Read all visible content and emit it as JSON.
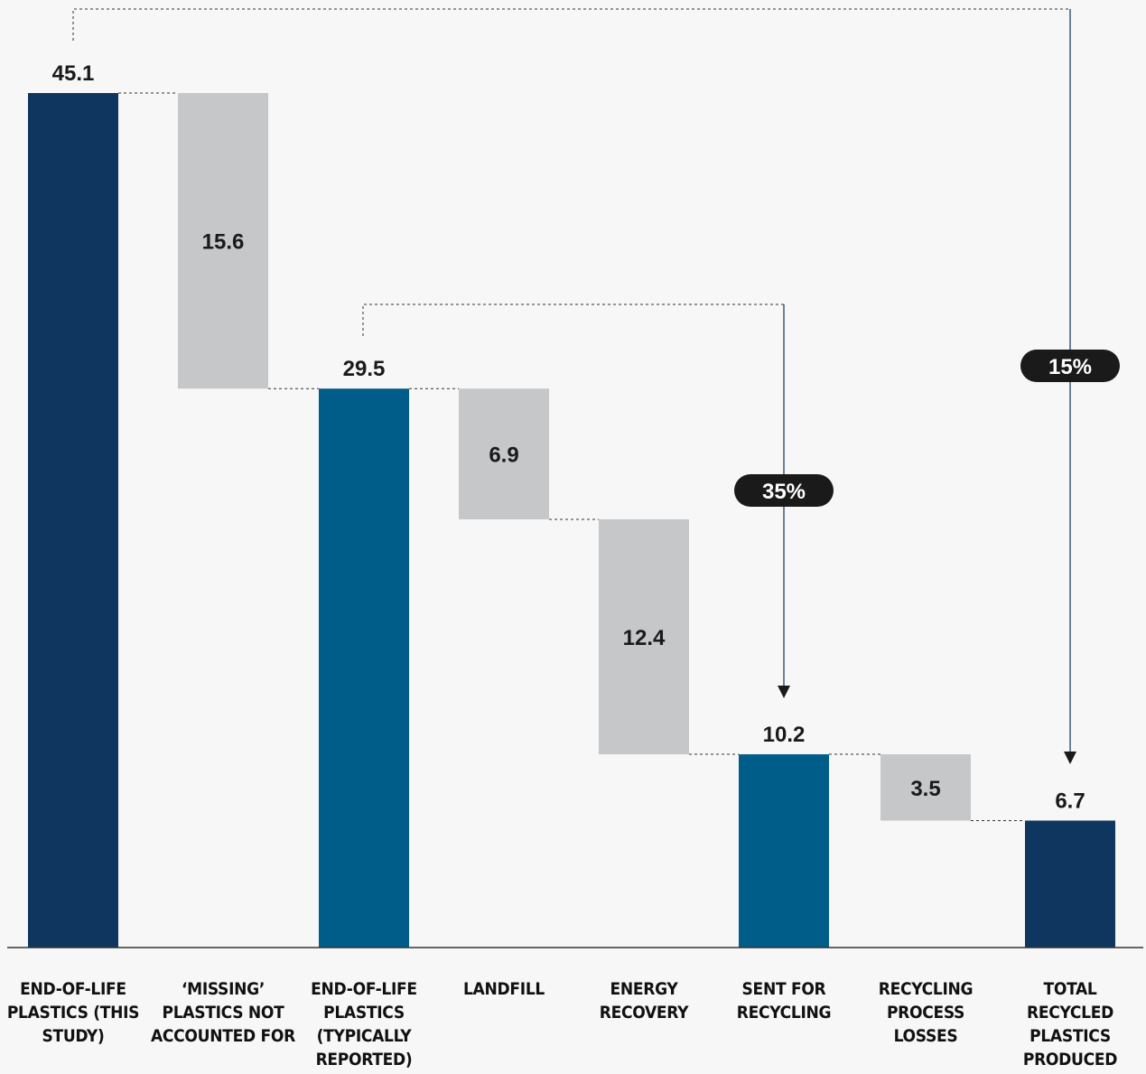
{
  "chart_data": {
    "type": "waterfall",
    "categories": [
      "END-OF-LIFE PLASTICS (THIS STUDY)",
      "‘MISSING’ PLASTICS NOT ACCOUNTED FOR",
      "END-OF-LIFE PLASTICS (TYPICALLY REPORTED)",
      "LANDFILL",
      "ENERGY RECOVERY",
      "SENT FOR RECYCLING",
      "RECYCLING PROCESS LOSSES",
      "TOTAL RECYCLED PLASTICS PRODUCED"
    ],
    "values": [
      45.1,
      15.6,
      29.5,
      6.9,
      12.4,
      10.2,
      3.5,
      6.7
    ],
    "value_labels": [
      "45.1",
      "15.6",
      "29.5",
      "6.9",
      "12.4",
      "10.2",
      "3.5",
      "6.7"
    ],
    "bar_kinds": [
      "total",
      "decrease",
      "total",
      "decrease",
      "decrease",
      "total",
      "decrease",
      "total"
    ],
    "ylim": [
      0,
      45.1
    ],
    "grid": false,
    "annotations": [
      {
        "from": "END-OF-LIFE PLASTICS (TYPICALLY REPORTED)",
        "to": "SENT FOR RECYCLING",
        "label": "35%"
      },
      {
        "from": "END-OF-LIFE PLASTICS (THIS STUDY)",
        "to": "TOTAL RECYCLED PLASTICS PRODUCED",
        "label": "15%"
      }
    ],
    "colors": {
      "total_dark": "#0e365e",
      "total_mid": "#005d8a",
      "decrease": "#c6c7c9",
      "annotation_pill": "#1a1a1a",
      "arrow_line": "#0e365e"
    }
  }
}
